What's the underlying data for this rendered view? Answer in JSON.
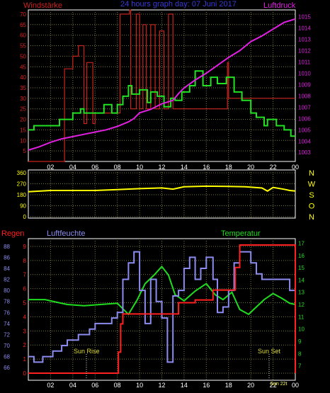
{
  "header": {
    "left_label": "Windstärke",
    "title": "24 hours graph day: 07 Juni 2017",
    "right_label": "Luftdruck"
  },
  "bottom_header": {
    "regen": "Regen",
    "luftfeuchte": "Luftfeuchte",
    "temperatur": "Temperatur"
  },
  "annotations": {
    "sunrise": "Sun Rise",
    "sunset": "Sun Set",
    "overlap": "Sun 22t"
  },
  "colors": {
    "wind_gust": "#c8241e",
    "wind_avg": "#22e022",
    "pressure": "#e020e0",
    "direction": "#ffff00",
    "rain": "#ff2020",
    "humidity": "#8c8cf0",
    "temperature": "#20dc20",
    "grid": "#7a7a3a",
    "panel_border": "#ffffff"
  },
  "chart_data": [
    {
      "type": "line",
      "title": "24 hours graph day: 07 Juni 2017",
      "x_ticks": [
        "02",
        "04",
        "06",
        "08",
        "10",
        "12",
        "14",
        "16",
        "18",
        "20",
        "22",
        "00"
      ],
      "y_left_label": "Windstärke",
      "y_left_ticks": [
        5,
        10,
        15,
        20,
        25,
        30,
        35,
        40,
        45,
        50,
        55,
        60,
        65,
        70
      ],
      "ylim_left": [
        0,
        72
      ],
      "y_right_label": "Luftdruck",
      "y_right_ticks": [
        1003,
        1004,
        1005,
        1006,
        1007,
        1008,
        1009,
        1010,
        1011,
        1012,
        1013,
        1014,
        1015
      ],
      "ylim_right": [
        1002.2,
        1015.6
      ],
      "series": [
        {
          "name": "Windstärke",
          "axis": "left",
          "step": true,
          "hours": [
            0.0,
            3.0,
            3.25,
            4.0,
            4.5,
            5.0,
            5.25,
            5.8,
            6.0,
            8.2,
            8.25,
            9.1,
            9.2,
            9.7,
            10.0,
            10.3,
            10.6,
            11.0,
            11.4,
            11.8,
            12.2,
            12.6,
            13.0,
            13.4,
            17.9,
            18.0,
            18.4,
            24.0
          ],
          "values": [
            0,
            0,
            44,
            50,
            55,
            18,
            47,
            18,
            23,
            23,
            70,
            72,
            25,
            70,
            25,
            65,
            25,
            65,
            25,
            62,
            25,
            70,
            25,
            25,
            47,
            30,
            30,
            30
          ]
        },
        {
          "name": "Windstärke avg",
          "axis": "left",
          "step": true,
          "hours": [
            0.0,
            0.5,
            2.0,
            2.8,
            4.0,
            4.7,
            5.0,
            6.0,
            6.8,
            7.5,
            8.0,
            8.5,
            9.0,
            9.3,
            10.0,
            10.7,
            11.0,
            11.6,
            12.2,
            12.8,
            13.2,
            13.8,
            14.5,
            15.0,
            15.7,
            16.4,
            17.0,
            17.8,
            18.5,
            19.2,
            20.0,
            20.5,
            21.2,
            21.5,
            22.3,
            23.0,
            23.6,
            24.0
          ],
          "values": [
            15,
            17,
            17,
            20,
            23,
            25,
            23,
            23,
            27,
            23,
            27,
            31,
            36,
            32,
            34,
            28,
            33,
            31,
            26,
            30,
            29,
            33,
            36,
            43,
            36,
            40,
            37,
            40,
            33,
            29,
            23,
            21,
            17,
            20,
            17,
            15,
            12,
            12
          ]
        },
        {
          "name": "Luftdruck",
          "axis": "right",
          "step": false,
          "hours": [
            0.0,
            1.0,
            2.0,
            3.0,
            4.0,
            5.0,
            6.0,
            7.0,
            8.0,
            8.5,
            9.0,
            9.5,
            10.0,
            11.0,
            12.0,
            13.0,
            13.5,
            14.0,
            15.0,
            16.0,
            17.0,
            18.0,
            19.0,
            20.0,
            21.0,
            22.0,
            23.0,
            24.0
          ],
          "values": [
            1003.2,
            1003.5,
            1003.9,
            1004.2,
            1004.4,
            1004.6,
            1004.8,
            1005.0,
            1005.3,
            1005.5,
            1005.7,
            1006.0,
            1006.5,
            1006.8,
            1007.3,
            1007.6,
            1008.2,
            1008.7,
            1009.4,
            1010.0,
            1010.7,
            1011.4,
            1012.0,
            1012.8,
            1013.3,
            1013.9,
            1014.5,
            1014.8
          ]
        }
      ]
    },
    {
      "type": "line",
      "x_ticks": [
        "02",
        "04",
        "06",
        "08",
        "10",
        "12",
        "14",
        "16",
        "18",
        "20",
        "22",
        "00"
      ],
      "y_ticks": [
        0,
        90,
        180,
        270,
        360
      ],
      "ylim": [
        0,
        360
      ],
      "direction_labels": [
        "N",
        "W",
        "S",
        "O",
        "N"
      ],
      "series": [
        {
          "name": "Windrichtung",
          "step": false,
          "hours": [
            0.0,
            2.0,
            4.0,
            6.0,
            8.0,
            10.0,
            12.0,
            13.0,
            14.0,
            16.0,
            18.0,
            19.5,
            21.0,
            21.5,
            22.0,
            23.0,
            23.5,
            24.0
          ],
          "values": [
            205,
            215,
            215,
            215,
            222,
            230,
            236,
            226,
            245,
            250,
            248,
            245,
            235,
            210,
            240,
            225,
            215,
            210
          ]
        }
      ]
    },
    {
      "type": "line",
      "x_ticks": [
        "02",
        "04",
        "06",
        "08",
        "10",
        "12",
        "14",
        "16",
        "18",
        "20",
        "22",
        "00"
      ],
      "y_left_label": "Regen",
      "y_left_ticks": [
        0,
        1,
        2,
        3,
        4,
        5,
        6,
        7,
        8,
        9
      ],
      "ylim_left": [
        0,
        9.4
      ],
      "y_humidity_label": "Luftfeuchte",
      "y_humidity_ticks": [
        66,
        68,
        70,
        72,
        74,
        76,
        78,
        80,
        82,
        84,
        86,
        88
      ],
      "ylim_humidity": [
        65,
        89
      ],
      "y_right_label": "Temperatur",
      "y_right_ticks": [
        7,
        8,
        9,
        10,
        11,
        12,
        13,
        14,
        15,
        16,
        17
      ],
      "ylim_right": [
        6.4,
        17.2
      ],
      "series": [
        {
          "name": "Regen",
          "axis": "left",
          "step": true,
          "hours": [
            0.0,
            7.8,
            8.1,
            8.3,
            8.5,
            12.8,
            13.5,
            15.0,
            16.6,
            18.6,
            19.0,
            23.9,
            24.0
          ],
          "values": [
            0,
            0,
            1.5,
            3.5,
            4.2,
            4.2,
            5.0,
            5.2,
            5.9,
            7.5,
            9.1,
            9.1,
            0
          ]
        },
        {
          "name": "Luftfeuchte",
          "axis": "humidity",
          "step": true,
          "hours": [
            0.0,
            0.5,
            1.3,
            2.2,
            3.0,
            3.5,
            4.0,
            4.5,
            5.0,
            5.5,
            6.0,
            6.7,
            7.5,
            8.0,
            8.5,
            9.0,
            9.5,
            10.0,
            10.5,
            11.0,
            11.5,
            12.0,
            12.5,
            13.0,
            13.5,
            14.0,
            14.5,
            15.0,
            15.5,
            16.0,
            16.6,
            17.0,
            17.5,
            18.0,
            18.5,
            19.0,
            19.5,
            20.0,
            20.5,
            21.0,
            22.0,
            23.0,
            23.5,
            24.0
          ],
          "values": [
            68,
            67,
            68,
            69,
            70,
            71,
            71,
            72,
            72,
            73,
            74,
            74,
            75,
            76,
            82,
            85,
            87,
            80,
            74,
            82,
            78,
            75,
            67,
            79,
            80,
            84,
            86,
            82,
            84,
            86,
            82,
            76,
            77,
            80,
            85,
            87,
            87,
            85,
            83,
            82,
            82,
            82,
            80,
            79
          ]
        },
        {
          "name": "Temperatur",
          "axis": "right",
          "step": false,
          "hours": [
            0.0,
            1.5,
            2.5,
            3.5,
            5.0,
            6.5,
            8.0,
            9.0,
            9.8,
            10.5,
            11.3,
            12.0,
            12.6,
            13.2,
            14.0,
            15.0,
            16.0,
            16.8,
            17.5,
            18.3,
            19.0,
            19.8,
            20.5,
            21.2,
            22.0,
            22.8,
            23.5,
            24.0
          ],
          "values": [
            12.4,
            12.4,
            12.2,
            12.0,
            11.9,
            12.0,
            12.1,
            11.2,
            12.4,
            13.7,
            14.4,
            15.1,
            14.4,
            12.8,
            12.3,
            13.1,
            13.7,
            12.8,
            12.4,
            13.0,
            11.6,
            11.2,
            11.8,
            12.4,
            12.9,
            12.5,
            12.1,
            12.0
          ]
        }
      ]
    }
  ]
}
